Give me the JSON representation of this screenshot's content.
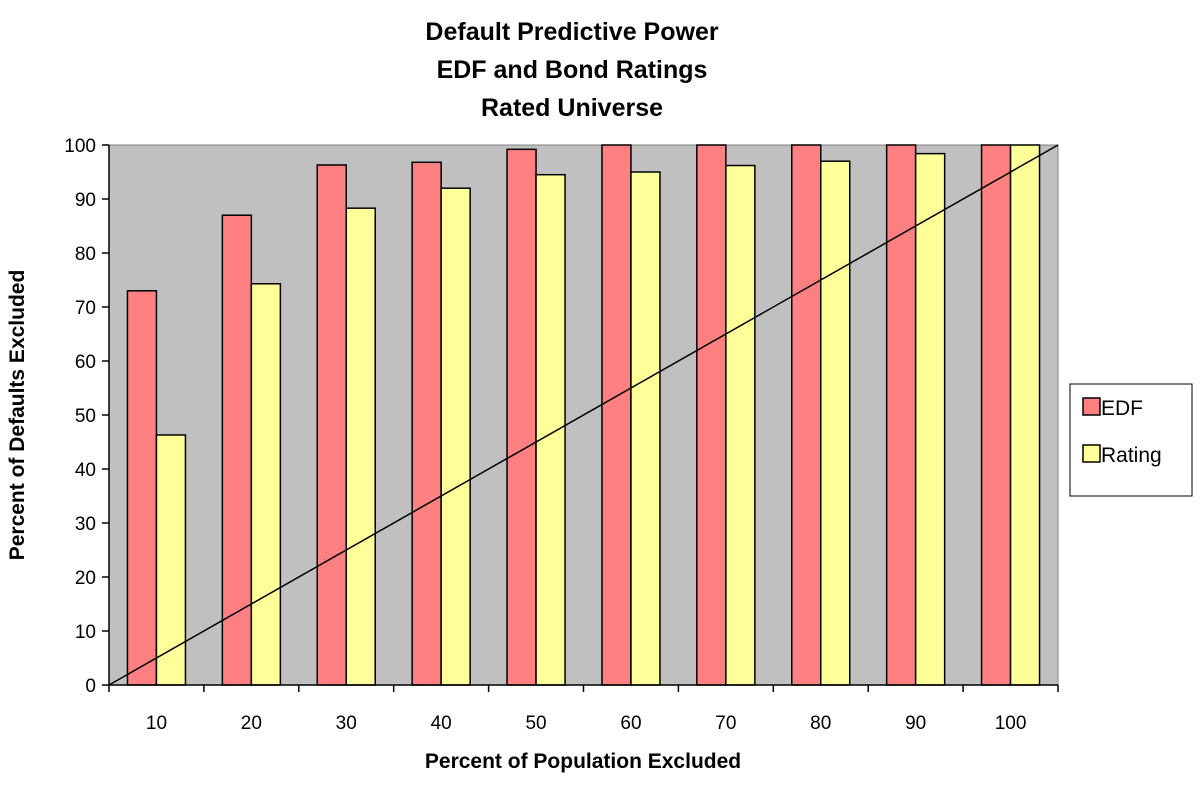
{
  "chart_data": {
    "type": "bar",
    "title_lines": [
      "Default Predictive Power",
      "EDF and Bond Ratings",
      "Rated Universe"
    ],
    "xlabel": "Percent of Population Excluded",
    "ylabel": "Percent of Defaults Excluded",
    "categories": [
      "10",
      "20",
      "30",
      "40",
      "50",
      "60",
      "70",
      "80",
      "90",
      "100"
    ],
    "series": [
      {
        "name": "EDF",
        "color": "#ff8080",
        "values": [
          73,
          87,
          96.3,
          96.8,
          99.2,
          100,
          100,
          100,
          100,
          100
        ]
      },
      {
        "name": "Rating",
        "color": "#ffff99",
        "values": [
          46.3,
          74.3,
          88.3,
          92,
          94.5,
          95,
          96.2,
          97,
          98.4,
          100
        ]
      }
    ],
    "ylim": [
      0,
      100
    ],
    "yticks": [
      "0",
      "10",
      "20",
      "30",
      "40",
      "50",
      "60",
      "70",
      "80",
      "90",
      "100"
    ],
    "reference_line": {
      "from": [
        0,
        0
      ],
      "to": [
        100,
        100
      ]
    },
    "plot_background": "#c0c0c0",
    "grid": false,
    "legend_position": "right"
  }
}
